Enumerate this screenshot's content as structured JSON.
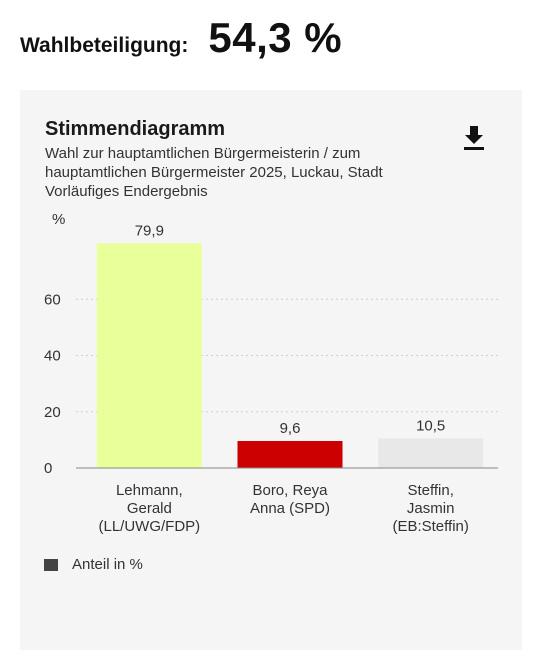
{
  "turnout": {
    "label": "Wahlbeteiligung:",
    "value": "54,3 %"
  },
  "card": {
    "title": "Stimmendiagramm",
    "subtitle_lines": [
      "Wahl zur hauptamtlichen Bürgermeisterin / zum",
      "hauptamtlichen Bürgermeister 2025, Luckau, Stadt",
      "Vorläufiges Endergebnis"
    ],
    "download_icon": "download-icon"
  },
  "chart_data": {
    "type": "bar",
    "ylabel": "%",
    "ylim": [
      0,
      80
    ],
    "yticks": [
      0,
      20,
      40,
      60
    ],
    "grid": true,
    "categories": [
      [
        "Lehmann,",
        "Gerald",
        "(LL/UWG/FDP)"
      ],
      [
        "Boro, Reya",
        "Anna (SPD)"
      ],
      [
        "Steffin,",
        "Jasmin",
        "(EB:Steffin)"
      ]
    ],
    "series": [
      {
        "name": "Anteil in %",
        "values": [
          79.9,
          9.6,
          10.5
        ],
        "value_labels": [
          "79,9",
          "9,6",
          "10,5"
        ],
        "colors": [
          "#e8ff9a",
          "#cc0000",
          "#e8e8e8"
        ]
      }
    ],
    "legend_position": "bottom-left"
  },
  "legend": {
    "label": "Anteil in %",
    "color": "#444444"
  }
}
